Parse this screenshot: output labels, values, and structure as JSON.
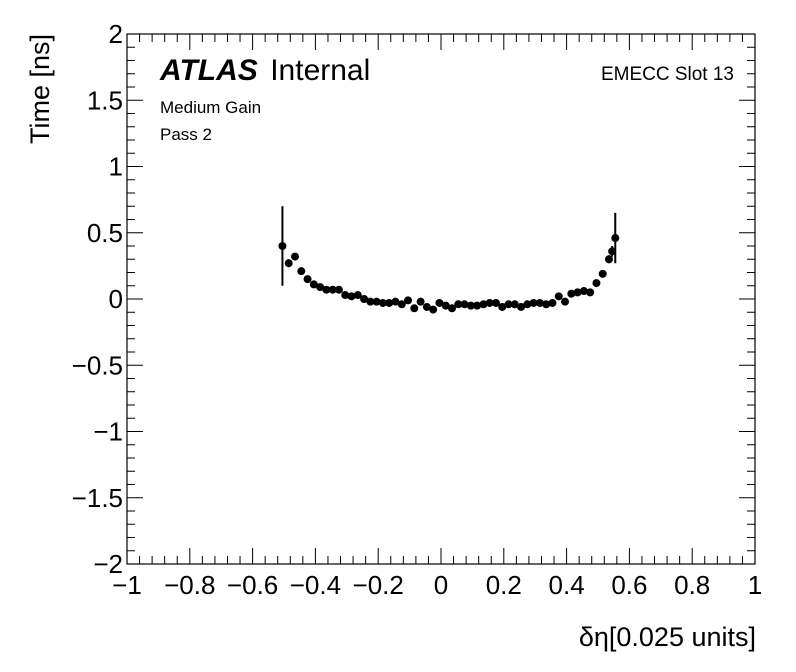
{
  "chart_data": {
    "type": "scatter",
    "xlabel": "δη[0.025 units]",
    "ylabel": "Time [ns]",
    "xlim": [
      -1,
      1
    ],
    "ylim": [
      -2,
      2
    ],
    "x_ticks": [
      -1,
      -0.8,
      -0.6,
      -0.4,
      -0.2,
      0,
      0.2,
      0.4,
      0.6,
      0.8,
      1
    ],
    "x_tick_labels": [
      "−1",
      "−0.8",
      "−0.6",
      "−0.4",
      "−0.2",
      "0",
      "0.2",
      "0.4",
      "0.6",
      "0.8",
      "1"
    ],
    "y_ticks": [
      -2,
      -1.5,
      -1,
      -0.5,
      0,
      0.5,
      1,
      1.5,
      2
    ],
    "y_tick_labels": [
      "−2",
      "−1.5",
      "−1",
      "−0.5",
      "0",
      "0.5",
      "1",
      "1.5",
      "2"
    ],
    "grid": false,
    "annotations": {
      "atlas_bold": "ATLAS",
      "atlas_normal": "Internal",
      "gain": "Medium Gain",
      "pass": "Pass 2",
      "slot": "EMECC Slot 13"
    },
    "series": [
      {
        "marker_color": "#000000",
        "points": [
          {
            "x": -0.505,
            "y": 0.4,
            "err": 0.3
          },
          {
            "x": -0.485,
            "y": 0.27,
            "err": 0.03
          },
          {
            "x": -0.465,
            "y": 0.32,
            "err": 0.02
          },
          {
            "x": -0.445,
            "y": 0.21,
            "err": 0.02
          },
          {
            "x": -0.425,
            "y": 0.15,
            "err": 0.02
          },
          {
            "x": -0.405,
            "y": 0.11,
            "err": 0.02
          },
          {
            "x": -0.385,
            "y": 0.09,
            "err": 0.02
          },
          {
            "x": -0.365,
            "y": 0.07,
            "err": 0.02
          },
          {
            "x": -0.345,
            "y": 0.07,
            "err": 0.02
          },
          {
            "x": -0.325,
            "y": 0.07,
            "err": 0.02
          },
          {
            "x": -0.305,
            "y": 0.03,
            "err": 0.02
          },
          {
            "x": -0.285,
            "y": 0.02,
            "err": 0.02
          },
          {
            "x": -0.265,
            "y": 0.03,
            "err": 0.02
          },
          {
            "x": -0.245,
            "y": 0.0,
            "err": 0.02
          },
          {
            "x": -0.225,
            "y": -0.02,
            "err": 0.02
          },
          {
            "x": -0.205,
            "y": -0.02,
            "err": 0.02
          },
          {
            "x": -0.185,
            "y": -0.03,
            "err": 0.02
          },
          {
            "x": -0.165,
            "y": -0.03,
            "err": 0.02
          },
          {
            "x": -0.145,
            "y": -0.02,
            "err": 0.02
          },
          {
            "x": -0.125,
            "y": -0.04,
            "err": 0.02
          },
          {
            "x": -0.105,
            "y": -0.01,
            "err": 0.02
          },
          {
            "x": -0.085,
            "y": -0.07,
            "err": 0.02
          },
          {
            "x": -0.065,
            "y": -0.02,
            "err": 0.02
          },
          {
            "x": -0.045,
            "y": -0.06,
            "err": 0.02
          },
          {
            "x": -0.025,
            "y": -0.08,
            "err": 0.02
          },
          {
            "x": -0.005,
            "y": -0.03,
            "err": 0.02
          },
          {
            "x": 0.015,
            "y": -0.05,
            "err": 0.02
          },
          {
            "x": 0.035,
            "y": -0.07,
            "err": 0.02
          },
          {
            "x": 0.055,
            "y": -0.04,
            "err": 0.02
          },
          {
            "x": 0.075,
            "y": -0.04,
            "err": 0.02
          },
          {
            "x": 0.095,
            "y": -0.05,
            "err": 0.02
          },
          {
            "x": 0.115,
            "y": -0.05,
            "err": 0.02
          },
          {
            "x": 0.135,
            "y": -0.04,
            "err": 0.02
          },
          {
            "x": 0.155,
            "y": -0.03,
            "err": 0.02
          },
          {
            "x": 0.175,
            "y": -0.03,
            "err": 0.02
          },
          {
            "x": 0.195,
            "y": -0.06,
            "err": 0.02
          },
          {
            "x": 0.215,
            "y": -0.04,
            "err": 0.02
          },
          {
            "x": 0.235,
            "y": -0.04,
            "err": 0.02
          },
          {
            "x": 0.255,
            "y": -0.06,
            "err": 0.02
          },
          {
            "x": 0.275,
            "y": -0.04,
            "err": 0.02
          },
          {
            "x": 0.295,
            "y": -0.03,
            "err": 0.02
          },
          {
            "x": 0.315,
            "y": -0.03,
            "err": 0.02
          },
          {
            "x": 0.335,
            "y": -0.04,
            "err": 0.02
          },
          {
            "x": 0.355,
            "y": -0.03,
            "err": 0.02
          },
          {
            "x": 0.375,
            "y": 0.02,
            "err": 0.02
          },
          {
            "x": 0.395,
            "y": -0.02,
            "err": 0.02
          },
          {
            "x": 0.415,
            "y": 0.04,
            "err": 0.02
          },
          {
            "x": 0.435,
            "y": 0.05,
            "err": 0.02
          },
          {
            "x": 0.455,
            "y": 0.06,
            "err": 0.02
          },
          {
            "x": 0.475,
            "y": 0.05,
            "err": 0.02
          },
          {
            "x": 0.495,
            "y": 0.12,
            "err": 0.02
          },
          {
            "x": 0.515,
            "y": 0.19,
            "err": 0.02
          },
          {
            "x": 0.535,
            "y": 0.3,
            "err": 0.03
          },
          {
            "x": 0.545,
            "y": 0.36,
            "err": 0.04
          },
          {
            "x": 0.555,
            "y": 0.46,
            "err": 0.19
          }
        ]
      }
    ]
  }
}
